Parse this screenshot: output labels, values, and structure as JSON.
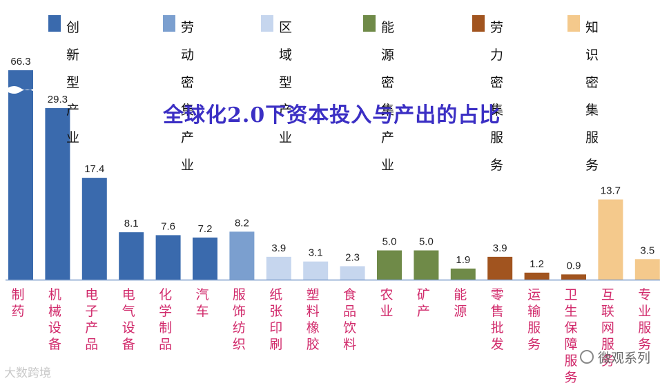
{
  "legend": [
    {
      "label": "创新型\n产业",
      "color": "#3a6aad"
    },
    {
      "label": "劳动密集\n产业",
      "color": "#7b9fcf"
    },
    {
      "label": "区域型\n产业",
      "color": "#c6d6ee"
    },
    {
      "label": "能源密集\n产业",
      "color": "#6f8a48"
    },
    {
      "label": "劳力密集\n服务",
      "color": "#a1541f"
    },
    {
      "label": "知识密集\n服务",
      "color": "#f4c98c"
    }
  ],
  "chart_data": {
    "type": "bar",
    "title": "全球化2.0下资本投入与产出的占比",
    "categories": [
      "制药",
      "机械设备",
      "电子产品",
      "电气设备",
      "化学制品",
      "汽车",
      "服饰纺织",
      "纸张印刷",
      "塑料橡胶",
      "食品饮料",
      "农业",
      "矿产",
      "能源",
      "零售批发",
      "运输服务",
      "卫生保障服务",
      "互联网服务",
      "专业服务"
    ],
    "values": [
      66.3,
      29.3,
      17.4,
      8.1,
      7.6,
      7.2,
      8.2,
      3.9,
      3.1,
      2.3,
      5.0,
      5.0,
      1.9,
      3.9,
      1.2,
      0.9,
      13.7,
      3.5
    ],
    "value_labels": [
      "66.3",
      "29.3",
      "17.4",
      "8.1",
      "7.6",
      "7.2",
      "8.2",
      "3.9",
      "3.1",
      "2.3",
      "5.0",
      "5.0",
      "1.9",
      "3.9",
      "1.2",
      "0.9",
      "13.7",
      "3.5"
    ],
    "groups": [
      0,
      0,
      0,
      0,
      0,
      0,
      1,
      2,
      2,
      2,
      3,
      3,
      3,
      4,
      4,
      4,
      5,
      5
    ],
    "axis_break": "after 29.3",
    "label_color": "#d12a6b",
    "xlabel": "",
    "ylabel": ""
  },
  "watermark": {
    "left": "大数跨境",
    "right": "微观系列"
  }
}
